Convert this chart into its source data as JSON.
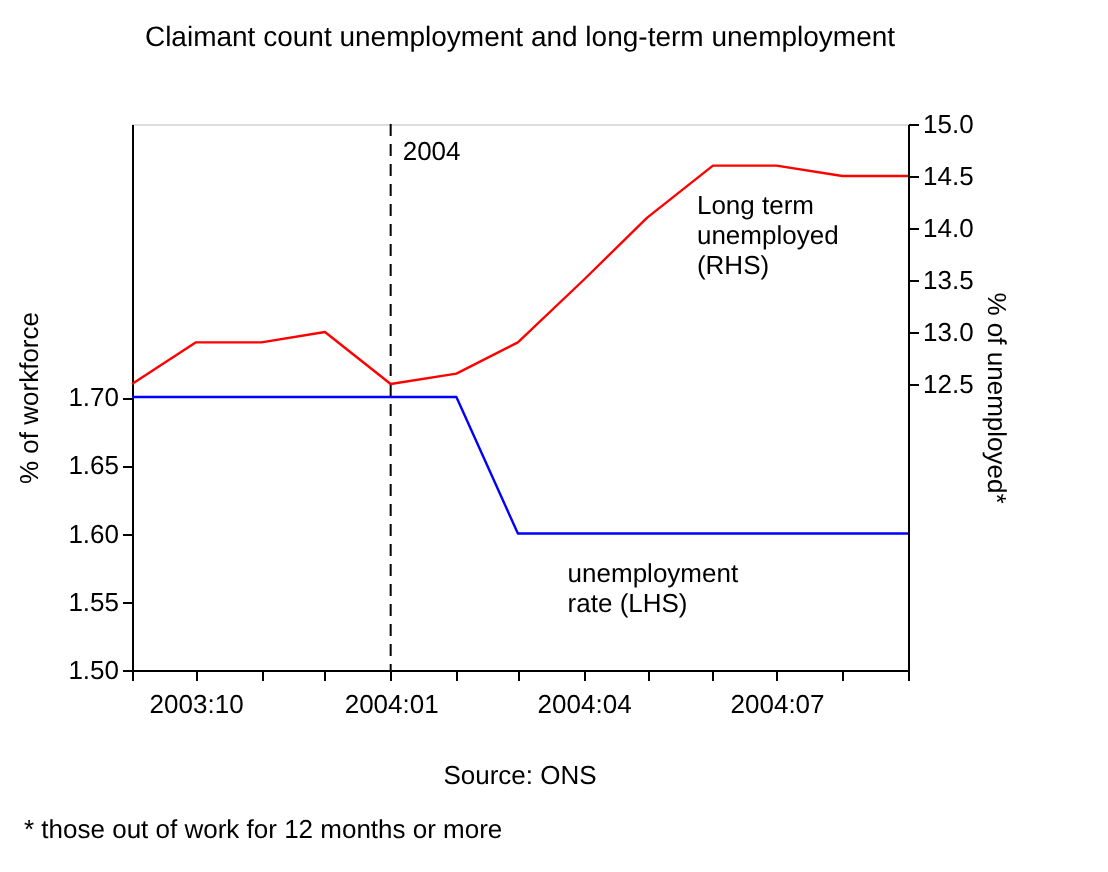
{
  "chart_data": {
    "type": "line",
    "title": "Claimant count unemployment and long-term unemployment",
    "x": [
      "2003-09",
      "2003-10",
      "2003-11",
      "2003-12",
      "2004-01",
      "2004-02",
      "2004-03",
      "2004-04",
      "2004-05",
      "2004-06",
      "2004-07",
      "2004-08",
      "2004-09"
    ],
    "series": [
      {
        "name": "unemployment rate (LHS)",
        "color": "#0000ff",
        "values": [
          1.7,
          1.7,
          1.7,
          1.7,
          1.7,
          1.7,
          1.6,
          1.6,
          1.6,
          1.6,
          1.6,
          1.6,
          1.6
        ]
      },
      {
        "name": "Long term unemployed (RHS)",
        "color": "#ff0000",
        "axis": "y2",
        "values": [
          12.5,
          12.9,
          12.9,
          13.0,
          12.5,
          12.6,
          12.9,
          13.5,
          14.1,
          14.6,
          14.6,
          14.5,
          14.5
        ]
      }
    ],
    "xlim": [
      "2003-09",
      "2004-09"
    ],
    "xticks": [
      {
        "value": "2003-09",
        "label": null
      },
      {
        "value": "2003-10",
        "label": "2003:10"
      },
      {
        "value": "2003-11",
        "label": null
      },
      {
        "value": "2003-12",
        "label": null
      },
      {
        "value": "2004-01",
        "label": "2004:01"
      },
      {
        "value": "2004-02",
        "label": null
      },
      {
        "value": "2004-03",
        "label": null
      },
      {
        "value": "2004-04",
        "label": "2004:04"
      },
      {
        "value": "2004-05",
        "label": null
      },
      {
        "value": "2004-06",
        "label": null
      },
      {
        "value": "2004-07",
        "label": "2004:07"
      },
      {
        "value": "2004-08",
        "label": null
      },
      {
        "value": "2004-09",
        "label": null
      }
    ],
    "ylim": [
      1.5,
      1.9
    ],
    "yticks": [
      {
        "value": 1.5,
        "label": "1.50"
      },
      {
        "value": 1.55,
        "label": "1.55"
      },
      {
        "value": 1.6,
        "label": "1.60"
      },
      {
        "value": 1.65,
        "label": "1.65"
      },
      {
        "value": 1.7,
        "label": "1.70"
      }
    ],
    "y2lim": [
      9.75,
      15.0
    ],
    "y2ticks": [
      {
        "value": 12.5,
        "label": "12.5"
      },
      {
        "value": 13.0,
        "label": "13.0"
      },
      {
        "value": 13.5,
        "label": "13.5"
      },
      {
        "value": 14.0,
        "label": "14.0"
      },
      {
        "value": 14.5,
        "label": "14.5"
      },
      {
        "value": 15.0,
        "label": "15.0"
      }
    ],
    "ylabel": "% of workforce",
    "y2label": "% of unemployed*",
    "ref_lines": [
      {
        "axis": "x",
        "value": "2004-01",
        "label": "2004",
        "color": "#000000",
        "line_style": "dashed"
      }
    ],
    "annotations": [
      "Source: ONS",
      "* those out of work for 12 months or more"
    ],
    "grid": false,
    "marker": "none",
    "line_style": "solid"
  }
}
